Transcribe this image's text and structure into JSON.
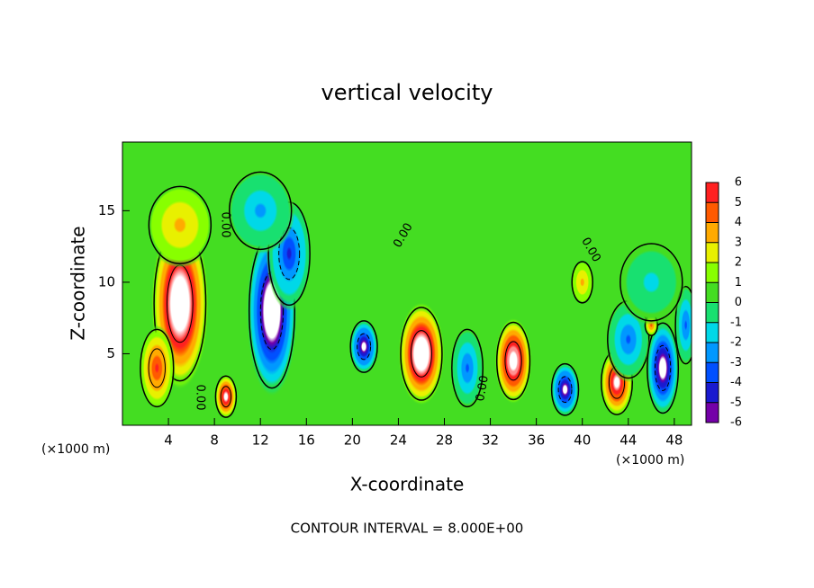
{
  "chart_data": {
    "type": "contour",
    "title": "vertical velocity",
    "x_label": "X-coordinate",
    "y_label": "Z-coordinate",
    "x_unit": "(×1000 m)",
    "annotation": "CONTOUR INTERVAL = 8.000E+00",
    "contour_label": "0.00",
    "xlim": [
      0,
      49.5
    ],
    "ylim": [
      0,
      19.8
    ],
    "xticks": [
      4,
      8,
      12,
      16,
      20,
      24,
      28,
      32,
      36,
      40,
      44,
      48
    ],
    "yticks": [
      5,
      10,
      15
    ],
    "colorbar_ticks": [
      -6,
      -5,
      -4,
      -3,
      -2,
      -1,
      0,
      1,
      2,
      3,
      4,
      5,
      6
    ],
    "colormap": [
      "#7400a8",
      "#1a1ad0",
      "#0050ff",
      "#0098ff",
      "#00d8e8",
      "#18e070",
      "#44dd22",
      "#88ff00",
      "#e8f000",
      "#ffaa00",
      "#ff5a00",
      "#ff2020",
      "#ff9090"
    ],
    "saturated_color": "#ffffff",
    "background_value": 0,
    "blobs": {
      "x": [
        5,
        3,
        9,
        13,
        14.5,
        21,
        26,
        30,
        34,
        38.5,
        40,
        43,
        44,
        47,
        49,
        46,
        12,
        5,
        46
      ],
      "y": [
        8.5,
        4,
        2,
        8,
        12,
        5.5,
        5,
        4,
        4.5,
        2.5,
        10,
        3,
        6,
        4,
        7,
        7,
        15,
        14,
        10
      ],
      "values": [
        9,
        5,
        7,
        -9,
        -5,
        -7,
        9,
        -4,
        8,
        -7,
        3,
        7,
        -4,
        -8,
        -4,
        4,
        -3,
        3,
        -2
      ],
      "x_spread": [
        2.5,
        1.6,
        1,
        2.2,
        2,
        1.3,
        2,
        1.5,
        1.6,
        1.3,
        1,
        1.5,
        2,
        1.5,
        1,
        0.6,
        3,
        3,
        3
      ],
      "y_spread": [
        6,
        3,
        1.6,
        6,
        4,
        2,
        3.6,
        3,
        3,
        2,
        1.6,
        2.5,
        3,
        3.5,
        3,
        0.8,
        3,
        3,
        3
      ]
    }
  }
}
